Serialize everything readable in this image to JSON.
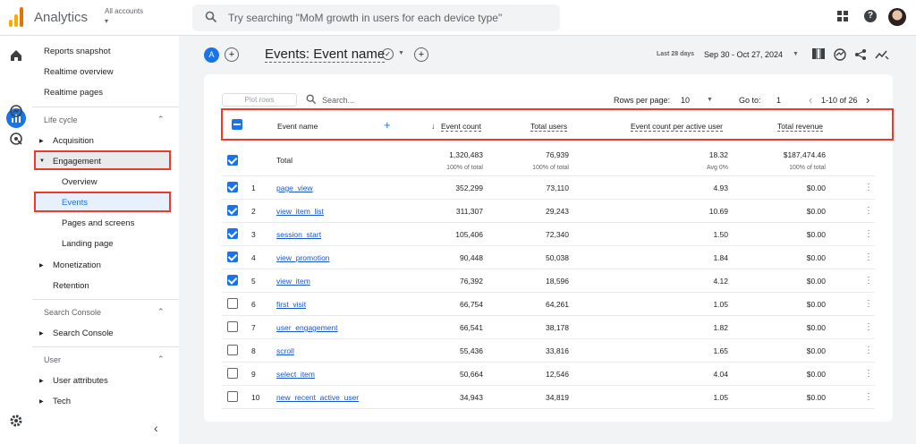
{
  "topbar": {
    "app_name": "Analytics",
    "account_label": "All accounts",
    "search_placeholder": "Try searching \"MoM growth in users for each device type\""
  },
  "sidebar": {
    "reports_snapshot": "Reports snapshot",
    "realtime_overview": "Realtime overview",
    "realtime_pages": "Realtime pages",
    "lifecycle": "Life cycle",
    "acquisition": "Acquisition",
    "engagement": "Engagement",
    "overview": "Overview",
    "events": "Events",
    "pages_screens": "Pages and screens",
    "landing_page": "Landing page",
    "monetization": "Monetization",
    "retention": "Retention",
    "search_console_head": "Search Console",
    "search_console": "Search Console",
    "user_head": "User",
    "user_attributes": "User attributes",
    "tech": "Tech"
  },
  "header": {
    "badge": "A",
    "title": "Events: Event name",
    "date_label": "Last 28 days",
    "date_range": "Sep 30 - Oct 27, 2024"
  },
  "toolbar": {
    "plot_rows": "Plot rows",
    "search": "Search...",
    "rows_per_page_label": "Rows per page:",
    "rows_per_page": "10",
    "goto_label": "Go to:",
    "goto_value": "1",
    "pagination": "1-10 of 26"
  },
  "columns": {
    "event_name": "Event name",
    "event_count": "Event count",
    "total_users": "Total users",
    "per_active_user": "Event count per active user",
    "total_revenue": "Total revenue"
  },
  "total": {
    "label": "Total",
    "event_count": "1,320,483",
    "event_count_sub": "100% of total",
    "total_users": "76,939",
    "total_users_sub": "100% of total",
    "per_user": "18.32",
    "per_user_sub": "Avg 0%",
    "revenue": "$187,474.46",
    "revenue_sub": "100% of total"
  },
  "rows": [
    {
      "idx": "1",
      "name": "page_view",
      "count": "352,299",
      "users": "73,110",
      "per": "4.93",
      "rev": "$0.00",
      "checked": true
    },
    {
      "idx": "2",
      "name": "view_item_list",
      "count": "311,307",
      "users": "29,243",
      "per": "10.69",
      "rev": "$0.00",
      "checked": true
    },
    {
      "idx": "3",
      "name": "session_start",
      "count": "105,406",
      "users": "72,340",
      "per": "1.50",
      "rev": "$0.00",
      "checked": true
    },
    {
      "idx": "4",
      "name": "view_promotion",
      "count": "90,448",
      "users": "50,038",
      "per": "1.84",
      "rev": "$0.00",
      "checked": true
    },
    {
      "idx": "5",
      "name": "view_item",
      "count": "76,392",
      "users": "18,596",
      "per": "4.12",
      "rev": "$0.00",
      "checked": true
    },
    {
      "idx": "6",
      "name": "first_visit",
      "count": "66,754",
      "users": "64,261",
      "per": "1.05",
      "rev": "$0.00",
      "checked": false
    },
    {
      "idx": "7",
      "name": "user_engagement",
      "count": "66,541",
      "users": "38,178",
      "per": "1.82",
      "rev": "$0.00",
      "checked": false
    },
    {
      "idx": "8",
      "name": "scroll",
      "count": "55,436",
      "users": "33,816",
      "per": "1.65",
      "rev": "$0.00",
      "checked": false
    },
    {
      "idx": "9",
      "name": "select_item",
      "count": "50,664",
      "users": "12,546",
      "per": "4.04",
      "rev": "$0.00",
      "checked": false
    },
    {
      "idx": "10",
      "name": "new_recent_active_user",
      "count": "34,943",
      "users": "34,819",
      "per": "1.05",
      "rev": "$0.00",
      "checked": false
    }
  ],
  "colors": {
    "accent": "#1a73e8",
    "highlight_border": "#ea3b2d"
  },
  "icons": [
    "home-icon",
    "reports-icon",
    "explore-icon",
    "advertising-icon",
    "settings-icon",
    "apps-icon",
    "help-icon"
  ]
}
